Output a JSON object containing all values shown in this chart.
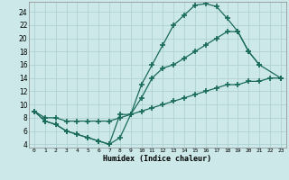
{
  "xlabel": "Humidex (Indice chaleur)",
  "bg_color": "#cce8e8",
  "line_color": "#1a6b5a",
  "grid_color": "#b0d0d0",
  "xlim": [
    -0.5,
    23.5
  ],
  "ylim": [
    3.5,
    25.5
  ],
  "xtick_labels": [
    "0",
    "1",
    "2",
    "3",
    "4",
    "5",
    "6",
    "7",
    "8",
    "9",
    "10",
    "11",
    "12",
    "13",
    "14",
    "15",
    "16",
    "17",
    "18",
    "19",
    "20",
    "21",
    "22",
    "23"
  ],
  "xtick_vals": [
    0,
    1,
    2,
    3,
    4,
    5,
    6,
    7,
    8,
    9,
    10,
    11,
    12,
    13,
    14,
    15,
    16,
    17,
    18,
    19,
    20,
    21,
    22,
    23
  ],
  "ytick_vals": [
    4,
    6,
    8,
    10,
    12,
    14,
    16,
    18,
    20,
    22,
    24
  ],
  "line1_x": [
    0,
    1,
    2,
    3,
    4,
    5,
    6,
    7,
    8,
    9,
    10,
    11,
    12,
    13,
    14,
    15,
    16,
    17,
    18,
    19,
    20,
    21
  ],
  "line1_y": [
    9,
    7.5,
    7,
    6,
    5.5,
    5,
    4.5,
    4,
    5,
    8.5,
    13,
    16,
    19,
    22,
    23.5,
    25,
    25.2,
    24.8,
    23,
    21,
    18,
    16
  ],
  "line2_x": [
    0,
    1,
    2,
    3,
    4,
    5,
    6,
    7,
    8,
    9,
    10,
    11,
    12,
    13,
    14,
    15,
    16,
    17,
    18,
    19,
    20,
    21,
    23
  ],
  "line2_y": [
    9,
    7.5,
    7,
    6,
    5.5,
    5,
    4.5,
    4,
    8.5,
    8.5,
    11,
    14,
    15.5,
    16,
    17,
    18,
    19,
    20,
    21,
    21,
    18,
    16,
    14
  ],
  "line3_x": [
    0,
    1,
    2,
    3,
    4,
    5,
    6,
    7,
    8,
    9,
    10,
    11,
    12,
    13,
    14,
    15,
    16,
    17,
    18,
    19,
    20,
    21,
    22,
    23
  ],
  "line3_y": [
    9,
    8,
    8,
    7.5,
    7.5,
    7.5,
    7.5,
    7.5,
    8,
    8.5,
    9,
    9.5,
    10,
    10.5,
    11,
    11.5,
    12,
    12.5,
    13,
    13,
    13.5,
    13.5,
    14,
    14
  ]
}
